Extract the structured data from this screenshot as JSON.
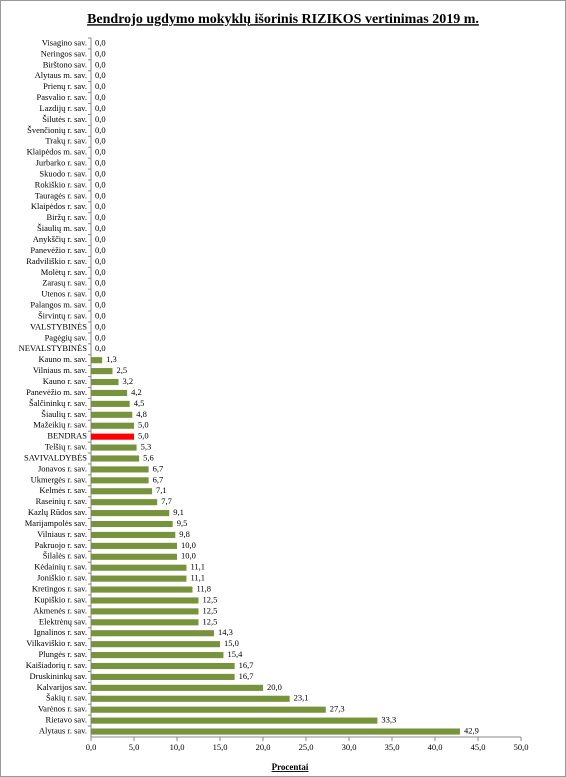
{
  "chart_data": {
    "type": "hbar",
    "title": "Bendrojo ugdymo mokyklų išorinis RIZIKOS vertinimas 2019 m.",
    "x_label": "Procentai",
    "categories": [
      "Visagino sav.",
      "Neringos sav.",
      "Birštono sav.",
      "Alytaus m. sav.",
      "Prienų r. sav.",
      "Pasvalio r. sav.",
      "Lazdijų r. sav.",
      "Šilutės r. sav.",
      "Švenčionių r. sav.",
      "Trakų r. sav.",
      "Klaipėdos m. sav.",
      "Jurbarko r. sav.",
      "Skuodo r. sav.",
      "Rokiškio r. sav.",
      "Tauragės r. sav.",
      "Klaipėdos r. sav.",
      "Biržų r. sav.",
      "Šiaulių m. sav.",
      "Anykščių r. sav.",
      "Panevėžio r. sav.",
      "Radviliškio r. sav.",
      "Molėtų r. sav.",
      "Zarasų r. sav.",
      "Utenos r. sav.",
      "Palangos m. sav.",
      "Širvintų r. sav.",
      "VALSTYBINĖS",
      "Pagėgių sav.",
      "NEVALSTYBINĖS",
      "Kauno m. sav.",
      "Vilniaus m. sav.",
      "Kauno r. sav.",
      "Panevėžio m. sav.",
      "Šalčininkų r. sav.",
      "Šiaulių r. sav.",
      "Mažeikių r. sav.",
      "BENDRAS",
      "Telšių r. sav.",
      "SAVIVALDYBĖS",
      "Jonavos r. sav.",
      "Ukmergės r. sav.",
      "Kelmės r. sav.",
      "Raseinių r. sav.",
      "Kazlų Rūdos sav.",
      "Marijampolės sav.",
      "Vilniaus r. sav.",
      "Pakruojo r. sav.",
      "Šilalės r. sav.",
      "Kėdainių r. sav.",
      "Joniškio r. sav.",
      "Kretingos r. sav.",
      "Kupiškio r. sav.",
      "Akmenės r. sav.",
      "Elektrėnų sav.",
      "Ignalinos r. sav.",
      "Vilkaviškio r. sav.",
      "Plungės r. sav.",
      "Kaišiadorių r. sav.",
      "Druskininkų sav.",
      "Kalvarijos sav.",
      "Šakių r. sav.",
      "Varėnos r. sav.",
      "Rietavo sav.",
      "Alytaus r. sav."
    ],
    "values": [
      0,
      0,
      0,
      0,
      0,
      0,
      0,
      0,
      0,
      0,
      0,
      0,
      0,
      0,
      0,
      0,
      0,
      0,
      0,
      0,
      0,
      0,
      0,
      0,
      0,
      0,
      0,
      0,
      0,
      1.3,
      2.5,
      3.2,
      4.2,
      4.5,
      4.8,
      5.0,
      5.0,
      5.3,
      5.6,
      6.7,
      6.7,
      7.1,
      7.7,
      9.1,
      9.5,
      9.8,
      10.0,
      10.0,
      11.1,
      11.1,
      11.8,
      12.5,
      12.5,
      12.5,
      14.3,
      15.0,
      15.4,
      16.7,
      16.7,
      20.0,
      23.1,
      27.3,
      33.3,
      42.9
    ],
    "value_labels": [
      "0,0",
      "0,0",
      "0,0",
      "0,0",
      "0,0",
      "0,0",
      "0,0",
      "0,0",
      "0,0",
      "0,0",
      "0,0",
      "0,0",
      "0,0",
      "0,0",
      "0,0",
      "0,0",
      "0,0",
      "0,0",
      "0,0",
      "0,0",
      "0,0",
      "0,0",
      "0,0",
      "0,0",
      "0,0",
      "0,0",
      "0,0",
      "0,0",
      "0,0",
      "1,3",
      "2,5",
      "3,2",
      "4,2",
      "4,5",
      "4,8",
      "5,0",
      "5,0",
      "5,3",
      "5,6",
      "6,7",
      "6,7",
      "7,1",
      "7,7",
      "9,1",
      "9,5",
      "9,8",
      "10,0",
      "10,0",
      "11,1",
      "11,1",
      "11,8",
      "12,5",
      "12,5",
      "12,5",
      "14,3",
      "15,0",
      "15,4",
      "16,7",
      "16,7",
      "20,0",
      "23,1",
      "27,3",
      "33,3",
      "42,9"
    ],
    "colors": [
      "#77933c",
      "#77933c",
      "#77933c",
      "#77933c",
      "#77933c",
      "#77933c",
      "#77933c",
      "#77933c",
      "#77933c",
      "#77933c",
      "#77933c",
      "#77933c",
      "#77933c",
      "#77933c",
      "#77933c",
      "#77933c",
      "#77933c",
      "#77933c",
      "#77933c",
      "#77933c",
      "#77933c",
      "#77933c",
      "#77933c",
      "#77933c",
      "#77933c",
      "#77933c",
      "#77933c",
      "#77933c",
      "#77933c",
      "#77933c",
      "#77933c",
      "#77933c",
      "#77933c",
      "#77933c",
      "#77933c",
      "#77933c",
      "#ff0000",
      "#77933c",
      "#77933c",
      "#77933c",
      "#77933c",
      "#77933c",
      "#77933c",
      "#77933c",
      "#77933c",
      "#77933c",
      "#77933c",
      "#77933c",
      "#77933c",
      "#77933c",
      "#77933c",
      "#77933c",
      "#77933c",
      "#77933c",
      "#77933c",
      "#77933c",
      "#77933c",
      "#77933c",
      "#77933c",
      "#77933c",
      "#77933c",
      "#77933c",
      "#77933c",
      "#77933c"
    ],
    "xlim": [
      0,
      50
    ],
    "xticks": [
      {
        "value": 0,
        "label": "0,0"
      },
      {
        "value": 5,
        "label": "5,0"
      },
      {
        "value": 10,
        "label": "10,0"
      },
      {
        "value": 15,
        "label": "15,0"
      },
      {
        "value": 20,
        "label": "20,0"
      },
      {
        "value": 25,
        "label": "25,0"
      },
      {
        "value": 30,
        "label": "30,0"
      },
      {
        "value": 35,
        "label": "35,0"
      },
      {
        "value": 40,
        "label": "40,0"
      },
      {
        "value": 45,
        "label": "45,0"
      },
      {
        "value": 50,
        "label": "50,0"
      }
    ]
  }
}
